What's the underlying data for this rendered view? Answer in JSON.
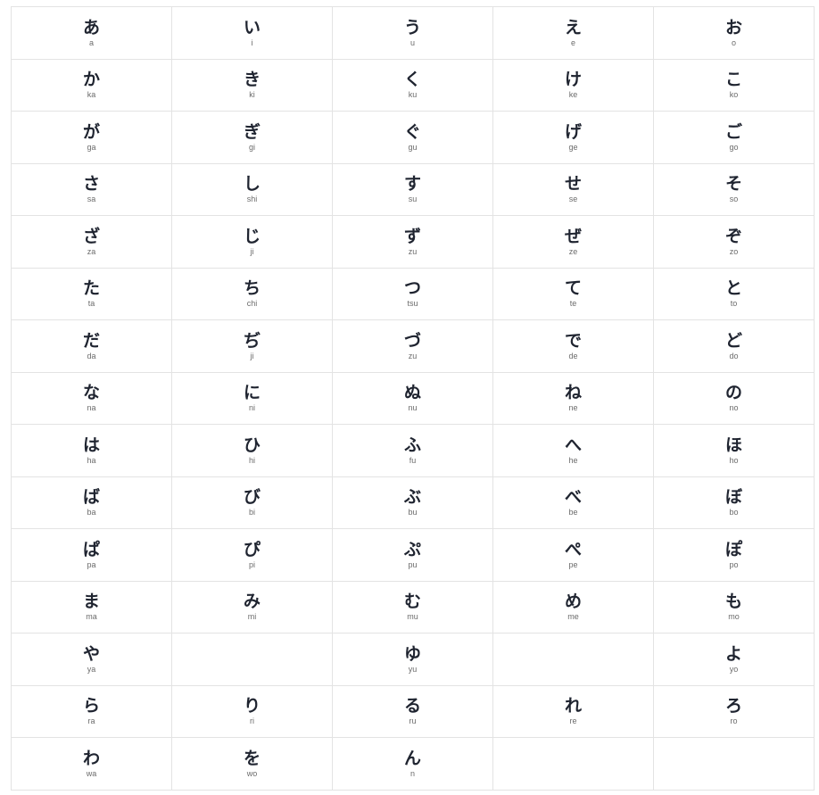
{
  "rows": [
    [
      {
        "kana": "あ",
        "romaji": "a"
      },
      {
        "kana": "い",
        "romaji": "i"
      },
      {
        "kana": "う",
        "romaji": "u"
      },
      {
        "kana": "え",
        "romaji": "e"
      },
      {
        "kana": "お",
        "romaji": "o"
      }
    ],
    [
      {
        "kana": "か",
        "romaji": "ka"
      },
      {
        "kana": "き",
        "romaji": "ki"
      },
      {
        "kana": "く",
        "romaji": "ku"
      },
      {
        "kana": "け",
        "romaji": "ke"
      },
      {
        "kana": "こ",
        "romaji": "ko"
      }
    ],
    [
      {
        "kana": "が",
        "romaji": "ga"
      },
      {
        "kana": "ぎ",
        "romaji": "gi"
      },
      {
        "kana": "ぐ",
        "romaji": "gu"
      },
      {
        "kana": "げ",
        "romaji": "ge"
      },
      {
        "kana": "ご",
        "romaji": "go"
      }
    ],
    [
      {
        "kana": "さ",
        "romaji": "sa"
      },
      {
        "kana": "し",
        "romaji": "shi"
      },
      {
        "kana": "す",
        "romaji": "su"
      },
      {
        "kana": "せ",
        "romaji": "se"
      },
      {
        "kana": "そ",
        "romaji": "so"
      }
    ],
    [
      {
        "kana": "ざ",
        "romaji": "za"
      },
      {
        "kana": "じ",
        "romaji": "ji"
      },
      {
        "kana": "ず",
        "romaji": "zu"
      },
      {
        "kana": "ぜ",
        "romaji": "ze"
      },
      {
        "kana": "ぞ",
        "romaji": "zo"
      }
    ],
    [
      {
        "kana": "た",
        "romaji": "ta"
      },
      {
        "kana": "ち",
        "romaji": "chi"
      },
      {
        "kana": "つ",
        "romaji": "tsu"
      },
      {
        "kana": "て",
        "romaji": "te"
      },
      {
        "kana": "と",
        "romaji": "to"
      }
    ],
    [
      {
        "kana": "だ",
        "romaji": "da"
      },
      {
        "kana": "ぢ",
        "romaji": "ji"
      },
      {
        "kana": "づ",
        "romaji": "zu"
      },
      {
        "kana": "で",
        "romaji": "de"
      },
      {
        "kana": "ど",
        "romaji": "do"
      }
    ],
    [
      {
        "kana": "な",
        "romaji": "na"
      },
      {
        "kana": "に",
        "romaji": "ni"
      },
      {
        "kana": "ぬ",
        "romaji": "nu"
      },
      {
        "kana": "ね",
        "romaji": "ne"
      },
      {
        "kana": "の",
        "romaji": "no"
      }
    ],
    [
      {
        "kana": "は",
        "romaji": "ha"
      },
      {
        "kana": "ひ",
        "romaji": "hi"
      },
      {
        "kana": "ふ",
        "romaji": "fu"
      },
      {
        "kana": "へ",
        "romaji": "he"
      },
      {
        "kana": "ほ",
        "romaji": "ho"
      }
    ],
    [
      {
        "kana": "ば",
        "romaji": "ba"
      },
      {
        "kana": "び",
        "romaji": "bi"
      },
      {
        "kana": "ぶ",
        "romaji": "bu"
      },
      {
        "kana": "べ",
        "romaji": "be"
      },
      {
        "kana": "ぼ",
        "romaji": "bo"
      }
    ],
    [
      {
        "kana": "ぱ",
        "romaji": "pa"
      },
      {
        "kana": "ぴ",
        "romaji": "pi"
      },
      {
        "kana": "ぷ",
        "romaji": "pu"
      },
      {
        "kana": "ぺ",
        "romaji": "pe"
      },
      {
        "kana": "ぽ",
        "romaji": "po"
      }
    ],
    [
      {
        "kana": "ま",
        "romaji": "ma"
      },
      {
        "kana": "み",
        "romaji": "mi"
      },
      {
        "kana": "む",
        "romaji": "mu"
      },
      {
        "kana": "め",
        "romaji": "me"
      },
      {
        "kana": "も",
        "romaji": "mo"
      }
    ],
    [
      {
        "kana": "や",
        "romaji": "ya"
      },
      null,
      {
        "kana": "ゆ",
        "romaji": "yu"
      },
      null,
      {
        "kana": "よ",
        "romaji": "yo"
      }
    ],
    [
      {
        "kana": "ら",
        "romaji": "ra"
      },
      {
        "kana": "り",
        "romaji": "ri"
      },
      {
        "kana": "る",
        "romaji": "ru"
      },
      {
        "kana": "れ",
        "romaji": "re"
      },
      {
        "kana": "ろ",
        "romaji": "ro"
      }
    ],
    [
      {
        "kana": "わ",
        "romaji": "wa"
      },
      {
        "kana": "を",
        "romaji": "wo"
      },
      {
        "kana": "ん",
        "romaji": "n"
      },
      null,
      null
    ]
  ]
}
